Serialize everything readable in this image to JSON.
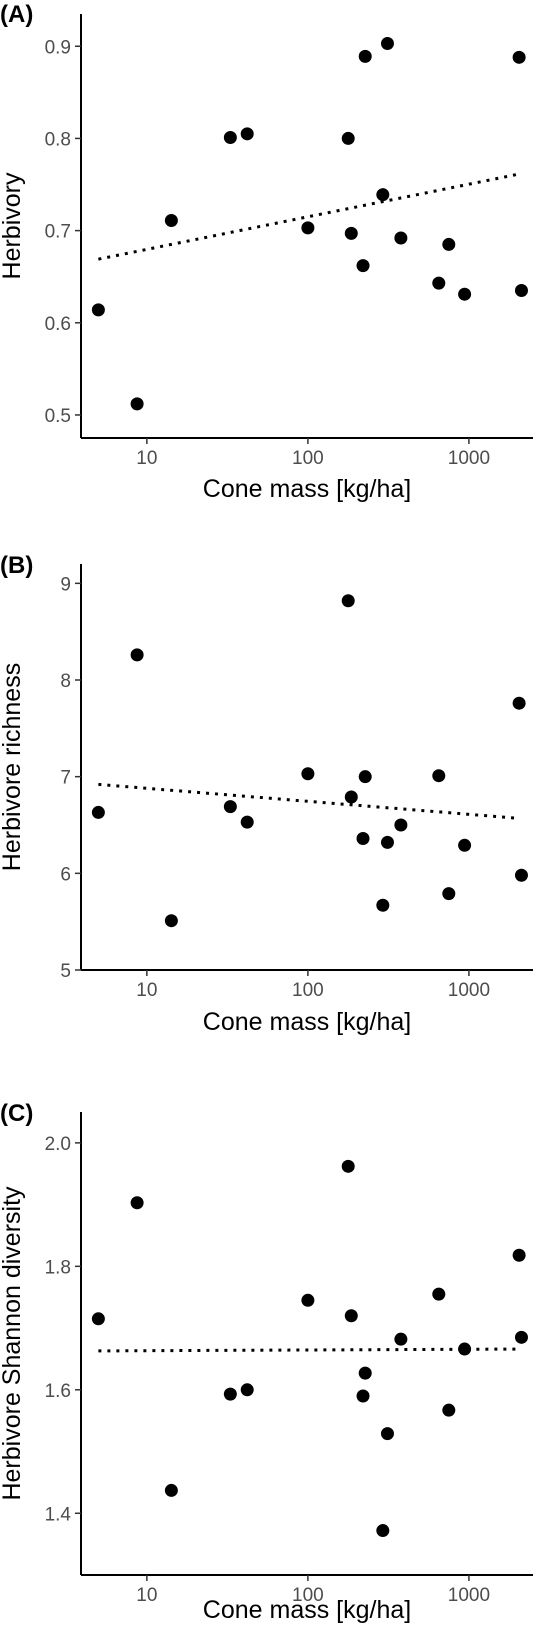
{
  "chart_data": [
    {
      "type": "scatter",
      "panel_label": "(A)",
      "xlabel": "Cone mass [kg/ha]",
      "ylabel": "Herbivory",
      "xscale": "log",
      "xlim": [
        3.9,
        2500
      ],
      "ylim": [
        0.475,
        0.935
      ],
      "xticks": [
        10,
        100,
        1000
      ],
      "xtick_labels": [
        "10",
        "100",
        "1000"
      ],
      "yticks": [
        0.5,
        0.6,
        0.7,
        0.8,
        0.9
      ],
      "ytick_labels": [
        "0.5",
        "0.6",
        "0.7",
        "0.8",
        "0.9"
      ],
      "grid": false,
      "legend": false,
      "points": [
        {
          "x": 5,
          "y": 0.614
        },
        {
          "x": 8.7,
          "y": 0.512
        },
        {
          "x": 14.2,
          "y": 0.711
        },
        {
          "x": 33,
          "y": 0.801
        },
        {
          "x": 42,
          "y": 0.805
        },
        {
          "x": 100,
          "y": 0.703
        },
        {
          "x": 178,
          "y": 0.8
        },
        {
          "x": 186,
          "y": 0.697
        },
        {
          "x": 220,
          "y": 0.662
        },
        {
          "x": 227,
          "y": 0.889
        },
        {
          "x": 292,
          "y": 0.739
        },
        {
          "x": 312,
          "y": 0.903
        },
        {
          "x": 378,
          "y": 0.692
        },
        {
          "x": 650,
          "y": 0.643
        },
        {
          "x": 750,
          "y": 0.685
        },
        {
          "x": 940,
          "y": 0.631
        },
        {
          "x": 2050,
          "y": 0.888
        },
        {
          "x": 2120,
          "y": 0.635
        }
      ],
      "trend": {
        "x": [
          5,
          2000
        ],
        "y": [
          0.669,
          0.761
        ]
      }
    },
    {
      "type": "scatter",
      "panel_label": "(B)",
      "xlabel": "Cone mass [kg/ha]",
      "ylabel": "Herbivore richness",
      "xscale": "log",
      "xlim": [
        3.9,
        2500
      ],
      "ylim": [
        5,
        9.2
      ],
      "xticks": [
        10,
        100,
        1000
      ],
      "xtick_labels": [
        "10",
        "100",
        "1000"
      ],
      "yticks": [
        5,
        6,
        7,
        8,
        9
      ],
      "ytick_labels": [
        "5",
        "6",
        "7",
        "8",
        "9"
      ],
      "grid": false,
      "legend": false,
      "points": [
        {
          "x": 5,
          "y": 6.63
        },
        {
          "x": 8.7,
          "y": 8.26
        },
        {
          "x": 14.2,
          "y": 5.51
        },
        {
          "x": 33,
          "y": 6.69
        },
        {
          "x": 42,
          "y": 6.53
        },
        {
          "x": 100,
          "y": 7.03
        },
        {
          "x": 178,
          "y": 8.82
        },
        {
          "x": 186,
          "y": 6.79
        },
        {
          "x": 220,
          "y": 6.36
        },
        {
          "x": 227,
          "y": 7.0
        },
        {
          "x": 292,
          "y": 5.67
        },
        {
          "x": 312,
          "y": 6.32
        },
        {
          "x": 378,
          "y": 6.5
        },
        {
          "x": 650,
          "y": 7.01
        },
        {
          "x": 750,
          "y": 5.79
        },
        {
          "x": 940,
          "y": 6.29
        },
        {
          "x": 2050,
          "y": 7.76
        },
        {
          "x": 2120,
          "y": 5.98
        }
      ],
      "trend": {
        "x": [
          5,
          2000
        ],
        "y": [
          6.92,
          6.57
        ]
      }
    },
    {
      "type": "scatter",
      "panel_label": "(C)",
      "xlabel": "Cone mass [kg/ha]",
      "ylabel": "Herbivore Shannon diversity",
      "xscale": "log",
      "xlim": [
        3.9,
        2500
      ],
      "ylim": [
        1.3,
        2.05
      ],
      "xticks": [
        10,
        100,
        1000
      ],
      "xtick_labels": [
        "10",
        "100",
        "1000"
      ],
      "yticks": [
        1.4,
        1.6,
        1.8,
        2.0
      ],
      "ytick_labels": [
        "1.4",
        "1.6",
        "1.8",
        "2.0"
      ],
      "grid": false,
      "legend": false,
      "points": [
        {
          "x": 5,
          "y": 1.715
        },
        {
          "x": 8.7,
          "y": 1.903
        },
        {
          "x": 14.2,
          "y": 1.437
        },
        {
          "x": 33,
          "y": 1.593
        },
        {
          "x": 42,
          "y": 1.6
        },
        {
          "x": 100,
          "y": 1.745
        },
        {
          "x": 178,
          "y": 1.962
        },
        {
          "x": 186,
          "y": 1.72
        },
        {
          "x": 220,
          "y": 1.59
        },
        {
          "x": 227,
          "y": 1.627
        },
        {
          "x": 292,
          "y": 1.372
        },
        {
          "x": 312,
          "y": 1.529
        },
        {
          "x": 378,
          "y": 1.682
        },
        {
          "x": 650,
          "y": 1.755
        },
        {
          "x": 750,
          "y": 1.567
        },
        {
          "x": 940,
          "y": 1.666
        },
        {
          "x": 2050,
          "y": 1.818
        },
        {
          "x": 2120,
          "y": 1.685
        }
      ],
      "trend": {
        "x": [
          5,
          2000
        ],
        "y": [
          1.663,
          1.666
        ]
      }
    }
  ]
}
